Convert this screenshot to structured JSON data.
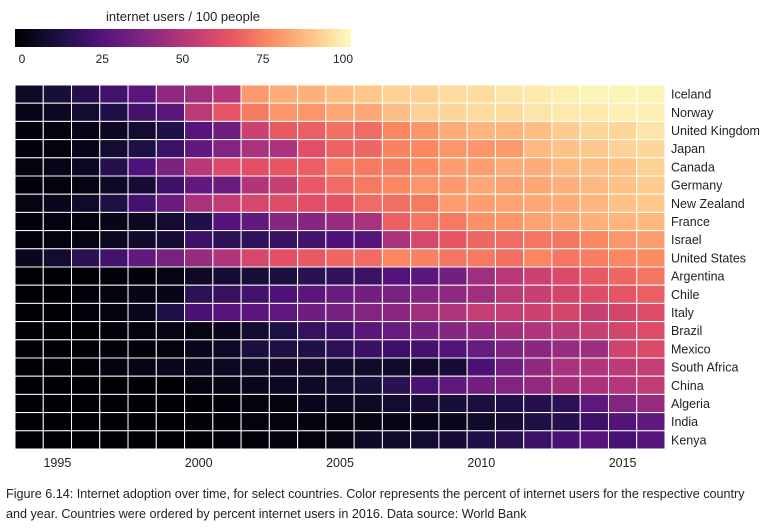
{
  "chart_data": {
    "type": "heatmap",
    "colorbar_title": "internet users / 100 people",
    "colorbar_ticks": [
      0,
      25,
      50,
      75,
      100
    ],
    "colorscale": "magma",
    "zlim": [
      0,
      100
    ],
    "years": [
      1994,
      1995,
      1996,
      1997,
      1998,
      1999,
      2000,
      2001,
      2002,
      2003,
      2004,
      2005,
      2006,
      2007,
      2008,
      2009,
      2010,
      2011,
      2012,
      2013,
      2014,
      2015,
      2016
    ],
    "x_ticks": [
      1995,
      2000,
      2005,
      2010,
      2015
    ],
    "countries": [
      "Iceland",
      "Norway",
      "United Kingdom",
      "Japan",
      "Canada",
      "Germany",
      "New Zealand",
      "France",
      "Israel",
      "United States",
      "Argentina",
      "Chile",
      "Italy",
      "Brazil",
      "Mexico",
      "South Africa",
      "China",
      "Algeria",
      "India",
      "Kenya"
    ],
    "values": [
      [
        7,
        11,
        15,
        22,
        28,
        41,
        45,
        50,
        79,
        83,
        84,
        87,
        89,
        91,
        91,
        93,
        93,
        95,
        96,
        97,
        98,
        98,
        98
      ],
      [
        4,
        6,
        9,
        14,
        22,
        28,
        52,
        64,
        72,
        78,
        78,
        82,
        82,
        87,
        91,
        92,
        93,
        93,
        95,
        96,
        96,
        97,
        97
      ],
      [
        1,
        2,
        4,
        6,
        9,
        14,
        27,
        33,
        56,
        65,
        66,
        70,
        69,
        75,
        78,
        83,
        85,
        85,
        87,
        90,
        92,
        92,
        95
      ],
      [
        1,
        2,
        4,
        9,
        13,
        21,
        30,
        38,
        47,
        48,
        62,
        67,
        68,
        74,
        75,
        78,
        78,
        79,
        86,
        88,
        89,
        91,
        92
      ],
      [
        2,
        4,
        6,
        15,
        25,
        36,
        51,
        60,
        62,
        64,
        66,
        72,
        72,
        73,
        76,
        80,
        80,
        83,
        83,
        86,
        87,
        88,
        91
      ],
      [
        1,
        2,
        3,
        7,
        10,
        21,
        30,
        32,
        49,
        55,
        65,
        69,
        72,
        75,
        78,
        79,
        82,
        81,
        82,
        84,
        86,
        88,
        90
      ],
      [
        3,
        5,
        8,
        13,
        22,
        32,
        47,
        53,
        59,
        61,
        62,
        63,
        69,
        70,
        72,
        80,
        80,
        81,
        82,
        83,
        85,
        88,
        89
      ],
      [
        1,
        2,
        2,
        4,
        6,
        9,
        14,
        26,
        30,
        39,
        39,
        43,
        47,
        66,
        71,
        72,
        77,
        78,
        81,
        82,
        84,
        85,
        86
      ],
      [
        1,
        2,
        3,
        6,
        8,
        10,
        21,
        17,
        18,
        19,
        22,
        25,
        27,
        48,
        59,
        64,
        68,
        69,
        71,
        71,
        75,
        78,
        80
      ],
      [
        5,
        9,
        16,
        22,
        30,
        36,
        43,
        49,
        59,
        62,
        65,
        68,
        69,
        75,
        74,
        71,
        72,
        70,
        75,
        71,
        73,
        75,
        76
      ],
      [
        0,
        0,
        0,
        1,
        1,
        3,
        7,
        10,
        11,
        12,
        16,
        18,
        21,
        26,
        28,
        34,
        45,
        51,
        56,
        60,
        65,
        68,
        71
      ],
      [
        0,
        0,
        1,
        2,
        4,
        4,
        17,
        19,
        22,
        25,
        28,
        31,
        34,
        36,
        38,
        41,
        45,
        52,
        55,
        58,
        61,
        64,
        66
      ],
      [
        0,
        0,
        1,
        2,
        5,
        13,
        23,
        27,
        28,
        29,
        33,
        35,
        38,
        40,
        45,
        49,
        54,
        54,
        56,
        58,
        55,
        58,
        61
      ],
      [
        0,
        0,
        0,
        1,
        2,
        3,
        3,
        5,
        9,
        13,
        19,
        21,
        28,
        31,
        34,
        39,
        41,
        46,
        49,
        51,
        55,
        58,
        61
      ],
      [
        0,
        0,
        0,
        1,
        1,
        2,
        5,
        7,
        12,
        13,
        14,
        17,
        20,
        21,
        22,
        26,
        31,
        37,
        40,
        43,
        44,
        57,
        60
      ],
      [
        0,
        1,
        1,
        2,
        3,
        5,
        5,
        6,
        7,
        7,
        8,
        8,
        8,
        8,
        8,
        10,
        24,
        34,
        41,
        47,
        49,
        52,
        54
      ],
      [
        0,
        0,
        0,
        0,
        0,
        0,
        2,
        3,
        5,
        6,
        7,
        9,
        11,
        16,
        23,
        29,
        34,
        38,
        42,
        46,
        48,
        50,
        53
      ],
      [
        0,
        0,
        0,
        0,
        0,
        0,
        0,
        1,
        2,
        2,
        5,
        6,
        7,
        9,
        10,
        11,
        12,
        14,
        15,
        17,
        29,
        38,
        43
      ],
      [
        0,
        0,
        0,
        0,
        0,
        0,
        1,
        1,
        2,
        2,
        2,
        2,
        3,
        4,
        4,
        5,
        8,
        10,
        13,
        15,
        21,
        26,
        30
      ],
      [
        0,
        0,
        0,
        0,
        0,
        0,
        0,
        1,
        1,
        2,
        2,
        3,
        7,
        8,
        9,
        10,
        14,
        16,
        21,
        23,
        27,
        23,
        27
      ]
    ]
  },
  "caption": "Figure 6.14: Internet adoption over time, for select countries. Color represents the percent of internet users for the respective country and year. Countries were ordered by percent internet users in 2016. Data source: World Bank"
}
